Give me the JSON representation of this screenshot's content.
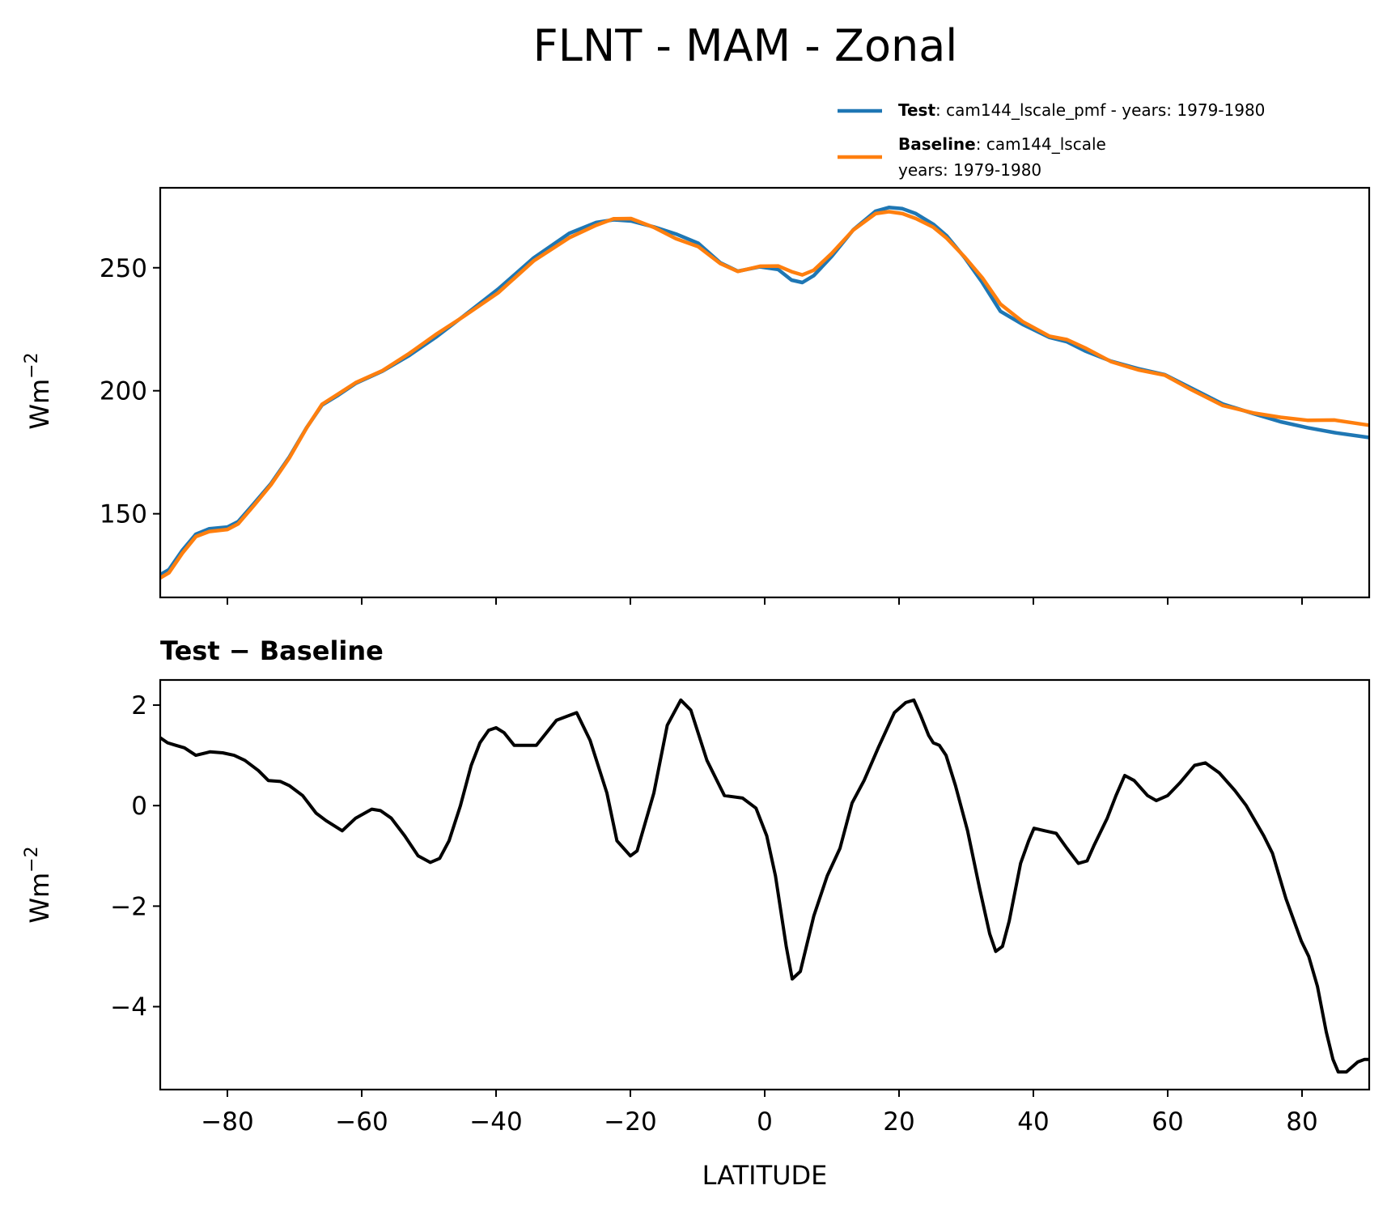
{
  "chart_data": [
    {
      "type": "line",
      "title": "FLNT - MAM - Zonal",
      "xlabel": "",
      "ylabel": "Wm",
      "ylabel_exponent": "−2",
      "xlim": [
        -90,
        90
      ],
      "ylim": [
        116,
        282.5
      ],
      "xticks": [
        -80,
        -60,
        -40,
        -20,
        0,
        20,
        40,
        60,
        80
      ],
      "yticks": [
        150,
        200,
        250
      ],
      "ytick_labels": [
        "150",
        "200",
        "250"
      ],
      "grid": false,
      "legend_placement": "above-top-right",
      "series": [
        {
          "name": "Test",
          "legend_bold": "Test",
          "legend_rest": ": cam144_lscale_pmf - years: 1979-1980",
          "color": "#1f77b4",
          "x": [
            -90,
            -88.7,
            -86.7,
            -84.7,
            -82.7,
            -80,
            -78.4,
            -76.1,
            -73.5,
            -70.8,
            -68.2,
            -65.9,
            -63.5,
            -60.9,
            -56.9,
            -52.9,
            -49,
            -45,
            -39.7,
            -34.4,
            -29.1,
            -25.1,
            -22.5,
            -19.9,
            -16.5,
            -13.2,
            -9.9,
            -6.6,
            -4,
            -0.7,
            2,
            4,
            5.6,
            7.3,
            10,
            13.2,
            16.5,
            18.5,
            20.5,
            22.5,
            25.1,
            27.1,
            29.8,
            32.4,
            35.1,
            38.4,
            42.4,
            45,
            47.7,
            51.6,
            55.6,
            59.6,
            63.6,
            68.2,
            72.9,
            76.8,
            80.8,
            84.8,
            90
          ],
          "y": [
            125.2,
            127.3,
            135.2,
            141.7,
            143.9,
            144.6,
            146.8,
            154,
            162.3,
            173,
            185,
            194.2,
            198.2,
            203,
            208,
            214.4,
            221.7,
            230,
            241.3,
            254,
            264,
            268.4,
            269.5,
            269,
            266.6,
            263.7,
            260,
            252,
            248.6,
            250.4,
            249.3,
            245,
            244,
            246.8,
            254.7,
            265.5,
            273,
            274.5,
            274,
            272,
            267.7,
            263,
            254,
            244,
            232.3,
            227,
            221.7,
            219.9,
            216.2,
            212,
            209,
            206.5,
            201,
            194.6,
            190.6,
            187.4,
            185,
            183,
            181
          ]
        },
        {
          "name": "Baseline",
          "legend_bold": "Baseline",
          "legend_rest": ": cam144_lscale",
          "legend_line2": "years: 1979-1980",
          "color": "#ff7f0e",
          "x": [
            -90,
            -88.7,
            -86.7,
            -84.7,
            -82.7,
            -80,
            -78.4,
            -76.1,
            -73.5,
            -70.8,
            -68.2,
            -65.9,
            -63.5,
            -60.9,
            -56.9,
            -52.9,
            -49,
            -45,
            -39.7,
            -34.4,
            -29.1,
            -25.1,
            -22.5,
            -19.9,
            -16.5,
            -13.2,
            -9.9,
            -6.6,
            -4,
            -0.7,
            2,
            4,
            5.6,
            7.3,
            10,
            13.2,
            16.5,
            18.5,
            20.5,
            22.5,
            25.1,
            27.1,
            29.8,
            32.4,
            35.1,
            38.4,
            42.4,
            45,
            47.7,
            51.6,
            55.6,
            59.6,
            63.6,
            68.2,
            72.9,
            76.8,
            80.8,
            84.8,
            90
          ],
          "y": [
            123.9,
            126,
            134,
            140.7,
            142.8,
            143.6,
            145.9,
            153.2,
            161.8,
            172.6,
            184.9,
            194.5,
            198.7,
            203.3,
            208.2,
            215.2,
            222.8,
            229.9,
            239.8,
            252.8,
            262.2,
            267.3,
            269.9,
            270,
            266.4,
            261.8,
            258.6,
            251.7,
            248.5,
            250.6,
            250.7,
            248.4,
            247.1,
            249,
            255.9,
            265.4,
            272,
            272.8,
            272,
            270,
            266.5,
            262,
            254.3,
            245.9,
            235.2,
            228.1,
            222.2,
            220.8,
            217.4,
            211.8,
            208.5,
            206.3,
            200.3,
            194,
            190.9,
            189.2,
            188,
            188.1,
            186
          ]
        }
      ]
    },
    {
      "type": "line",
      "title": "Test − Baseline",
      "xlabel": "LATITUDE",
      "ylabel": "Wm",
      "ylabel_exponent": "−2",
      "xlim": [
        -90,
        90
      ],
      "ylim": [
        -5.65,
        2.5
      ],
      "xticks": [
        -80,
        -60,
        -40,
        -20,
        0,
        20,
        40,
        60,
        80
      ],
      "xtick_labels": [
        "−80",
        "−60",
        "−40",
        "−20",
        "0",
        "20",
        "40",
        "60",
        "80"
      ],
      "yticks": [
        -4,
        -2,
        0,
        2
      ],
      "ytick_labels": [
        "−4",
        "−2",
        "0",
        "2"
      ],
      "grid": false,
      "series": [
        {
          "name": "Test − Baseline",
          "color": "#000000",
          "x": [
            -90,
            -88.9,
            -87.7,
            -86.4,
            -84.7,
            -82.6,
            -80.7,
            -79,
            -77.4,
            -75.4,
            -73.9,
            -72.1,
            -70.8,
            -68.8,
            -66.8,
            -65.3,
            -62.9,
            -60.9,
            -58.5,
            -57.2,
            -55.6,
            -53.6,
            -51.6,
            -49.8,
            -48.4,
            -47,
            -45.3,
            -43.7,
            -42.4,
            -41.1,
            -40,
            -38.8,
            -37.3,
            -34,
            -31,
            -28,
            -26,
            -23.5,
            -22,
            -20,
            -19,
            -16.5,
            -14.5,
            -12.5,
            -11,
            -8.6,
            -6,
            -3.3,
            -1.3,
            0.3,
            1.6,
            3.2,
            4.1,
            5.3,
            7.3,
            9.3,
            11.2,
            13,
            14.8,
            16.9,
            19.3,
            21,
            22.2,
            23.2,
            24.4,
            25.1,
            26,
            27,
            28.4,
            30.2,
            32,
            33.5,
            34.4,
            35.4,
            36.4,
            38.1,
            39.3,
            40.1,
            41.7,
            43.4,
            45,
            46.7,
            48,
            49,
            51,
            52.3,
            53.6,
            55,
            57,
            58.3,
            60,
            61.8,
            64,
            65.6,
            67.7,
            70,
            71.7,
            74.3,
            75.6,
            77.6,
            79.9,
            81,
            82.3,
            83.6,
            84.6,
            85.4,
            86.6,
            88.3,
            89.3,
            90
          ],
          "y": [
            1.35,
            1.25,
            1.2,
            1.15,
            1.0,
            1.07,
            1.05,
            1.0,
            0.9,
            0.7,
            0.5,
            0.48,
            0.4,
            0.2,
            -0.15,
            -0.3,
            -0.5,
            -0.25,
            -0.07,
            -0.1,
            -0.25,
            -0.6,
            -1.0,
            -1.13,
            -1.05,
            -0.7,
            0.0,
            0.8,
            1.25,
            1.5,
            1.55,
            1.45,
            1.2,
            1.2,
            1.7,
            1.85,
            1.3,
            0.25,
            -0.7,
            -1.0,
            -0.9,
            0.25,
            1.6,
            2.1,
            1.9,
            0.9,
            0.2,
            0.15,
            -0.05,
            -0.6,
            -1.4,
            -2.8,
            -3.45,
            -3.3,
            -2.2,
            -1.4,
            -0.85,
            0.05,
            0.5,
            1.15,
            1.85,
            2.05,
            2.1,
            1.8,
            1.4,
            1.25,
            1.2,
            1.0,
            0.4,
            -0.5,
            -1.65,
            -2.55,
            -2.9,
            -2.8,
            -2.3,
            -1.15,
            -0.7,
            -0.45,
            -0.5,
            -0.55,
            -0.85,
            -1.15,
            -1.1,
            -0.8,
            -0.25,
            0.2,
            0.6,
            0.5,
            0.2,
            0.1,
            0.2,
            0.45,
            0.8,
            0.85,
            0.65,
            0.3,
            0.0,
            -0.6,
            -0.95,
            -1.85,
            -2.7,
            -3.0,
            -3.6,
            -4.5,
            -5.05,
            -5.3,
            -5.3,
            -5.1,
            -5.05,
            -5.05
          ]
        }
      ]
    }
  ]
}
